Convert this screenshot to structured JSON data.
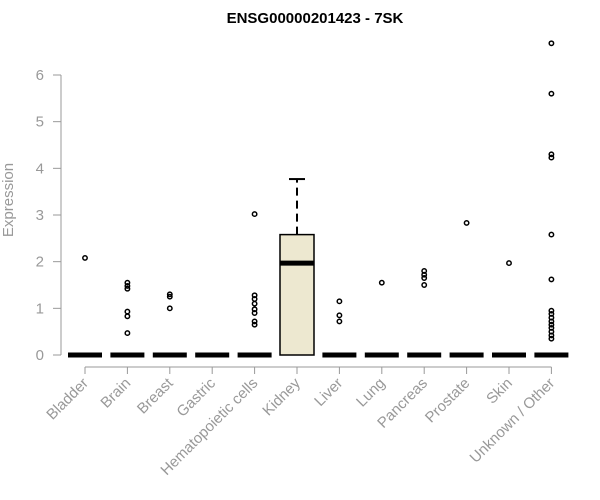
{
  "chart_data": {
    "type": "boxplot",
    "title": "ENSG00000201423 - 7SK",
    "xlabel": "",
    "ylabel": "Expression",
    "ylim": [
      0,
      6.8
    ],
    "yticks": [
      0,
      1,
      2,
      3,
      4,
      5,
      6
    ],
    "grid": false,
    "categories": [
      "Bladder",
      "Brain",
      "Breast",
      "Gastric",
      "Hematopoietic cells",
      "Kidney",
      "Liver",
      "Lung",
      "Pancreas",
      "Prostate",
      "Skin",
      "Unknown / Other"
    ],
    "boxes": [
      {
        "category": "Bladder",
        "q1": 0,
        "median": 0,
        "q3": 0,
        "whisker_low": 0,
        "whisker_high": 0,
        "outliers": [
          2.08
        ]
      },
      {
        "category": "Brain",
        "q1": 0,
        "median": 0,
        "q3": 0,
        "whisker_low": 0,
        "whisker_high": 0,
        "outliers": [
          1.55,
          1.48,
          1.42,
          0.93,
          0.83,
          0.47
        ]
      },
      {
        "category": "Breast",
        "q1": 0,
        "median": 0,
        "q3": 0,
        "whisker_low": 0,
        "whisker_high": 0,
        "outliers": [
          1.3,
          1.25,
          1.0
        ]
      },
      {
        "category": "Gastric",
        "q1": 0,
        "median": 0,
        "q3": 0,
        "whisker_low": 0,
        "whisker_high": 0,
        "outliers": []
      },
      {
        "category": "Hematopoietic cells",
        "q1": 0,
        "median": 0,
        "q3": 0,
        "whisker_low": 0,
        "whisker_high": 0,
        "outliers": [
          3.02,
          1.28,
          1.2,
          1.1,
          0.98,
          0.9,
          0.72,
          0.65
        ]
      },
      {
        "category": "Kidney",
        "q1": 0,
        "median": 1.97,
        "q3": 2.58,
        "whisker_low": 0,
        "whisker_high": 3.77,
        "outliers": []
      },
      {
        "category": "Liver",
        "q1": 0,
        "median": 0,
        "q3": 0,
        "whisker_low": 0,
        "whisker_high": 0,
        "outliers": [
          1.15,
          0.85,
          0.72
        ]
      },
      {
        "category": "Lung",
        "q1": 0,
        "median": 0,
        "q3": 0,
        "whisker_low": 0,
        "whisker_high": 0,
        "outliers": [
          1.55
        ]
      },
      {
        "category": "Pancreas",
        "q1": 0,
        "median": 0,
        "q3": 0,
        "whisker_low": 0,
        "whisker_high": 0,
        "outliers": [
          1.8,
          1.72,
          1.65,
          1.5
        ]
      },
      {
        "category": "Prostate",
        "q1": 0,
        "median": 0,
        "q3": 0,
        "whisker_low": 0,
        "whisker_high": 0,
        "outliers": [
          2.83
        ]
      },
      {
        "category": "Skin",
        "q1": 0,
        "median": 0,
        "q3": 0,
        "whisker_low": 0,
        "whisker_high": 0,
        "outliers": [
          1.97
        ]
      },
      {
        "category": "Unknown / Other",
        "q1": 0,
        "median": 0,
        "q3": 0,
        "whisker_low": 0,
        "whisker_high": 0,
        "outliers": [
          6.68,
          5.6,
          4.3,
          4.23,
          2.58,
          1.62,
          0.95,
          0.88,
          0.8,
          0.72,
          0.65,
          0.58,
          0.5,
          0.42,
          0.35
        ]
      }
    ],
    "colors": {
      "box_fill": "#ede8d0",
      "box_stroke": "#000000",
      "axis": "#999999",
      "text": "#999999"
    }
  }
}
